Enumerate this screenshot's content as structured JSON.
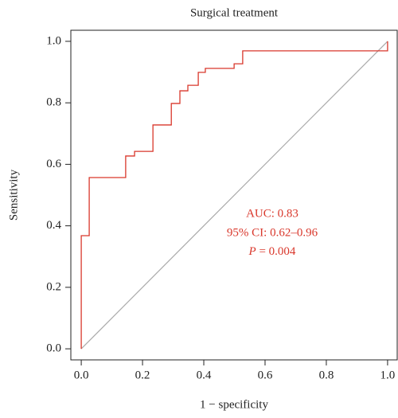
{
  "chart_data": {
    "type": "line",
    "title": "Surgical treatment",
    "xlabel": "1 − specificity",
    "ylabel": "Sensitivity",
    "x": [
      0,
      0,
      0.026,
      0.026,
      0.145,
      0.145,
      0.174,
      0.174,
      0.234,
      0.234,
      0.294,
      0.294,
      0.322,
      0.322,
      0.348,
      0.348,
      0.382,
      0.382,
      0.405,
      0.405,
      0.499,
      0.499,
      0.527,
      0.527,
      1.0,
      1.0
    ],
    "series": [
      {
        "name": "ROC",
        "color": "#d9372b",
        "values": [
          0,
          0.368,
          0.368,
          0.557,
          0.557,
          0.627,
          0.627,
          0.642,
          0.642,
          0.728,
          0.728,
          0.798,
          0.798,
          0.839,
          0.839,
          0.857,
          0.857,
          0.899,
          0.899,
          0.912,
          0.912,
          0.927,
          0.927,
          0.969,
          0.969,
          1.0
        ]
      }
    ],
    "xlim": [
      -0.034,
      1.034
    ],
    "ylim": [
      -0.036,
      1.036
    ],
    "xticks": [
      {
        "value": 0,
        "label": "0.0"
      },
      0.2,
      0.4,
      0.6,
      0.8,
      {
        "value": 1,
        "label": "1.0"
      }
    ],
    "yticks": [
      {
        "value": 0,
        "label": "0.0"
      },
      0.2,
      0.4,
      0.6,
      0.8,
      {
        "value": 1,
        "label": "1.0"
      }
    ],
    "annotations": [
      "AUC: 0.83",
      "95% CI: 0.62–0.96",
      "P = 0.004"
    ]
  }
}
